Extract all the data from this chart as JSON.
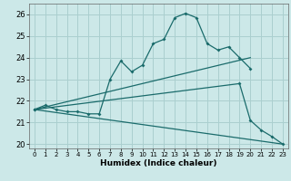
{
  "xlabel": "Humidex (Indice chaleur)",
  "xlim": [
    -0.5,
    23.5
  ],
  "ylim": [
    19.8,
    26.5
  ],
  "yticks": [
    20,
    21,
    22,
    23,
    24,
    25,
    26
  ],
  "xticks": [
    0,
    1,
    2,
    3,
    4,
    5,
    6,
    7,
    8,
    9,
    10,
    11,
    12,
    13,
    14,
    15,
    16,
    17,
    18,
    19,
    20,
    21,
    22,
    23
  ],
  "bg_color": "#cce8e8",
  "grid_color": "#aacfcf",
  "line_color": "#1a6b6b",
  "line1_x": [
    0,
    1,
    2,
    3,
    4,
    5,
    6,
    7,
    8,
    9,
    10,
    11,
    12,
    13,
    14,
    15,
    16,
    17,
    18,
    19,
    20
  ],
  "line1_y": [
    21.6,
    21.8,
    21.6,
    21.5,
    21.5,
    21.4,
    21.4,
    23.0,
    23.85,
    23.35,
    23.65,
    24.65,
    24.85,
    25.85,
    26.05,
    25.85,
    24.65,
    24.35,
    24.5,
    24.0,
    23.5
  ],
  "line2_x": [
    0,
    20
  ],
  "line2_y": [
    21.6,
    24.0
  ],
  "line3_x": [
    0,
    23
  ],
  "line3_y": [
    21.6,
    20.0
  ],
  "line4_x": [
    0,
    19,
    20,
    21,
    22,
    23
  ],
  "line4_y": [
    21.6,
    22.8,
    21.1,
    20.65,
    20.35,
    20.0
  ]
}
